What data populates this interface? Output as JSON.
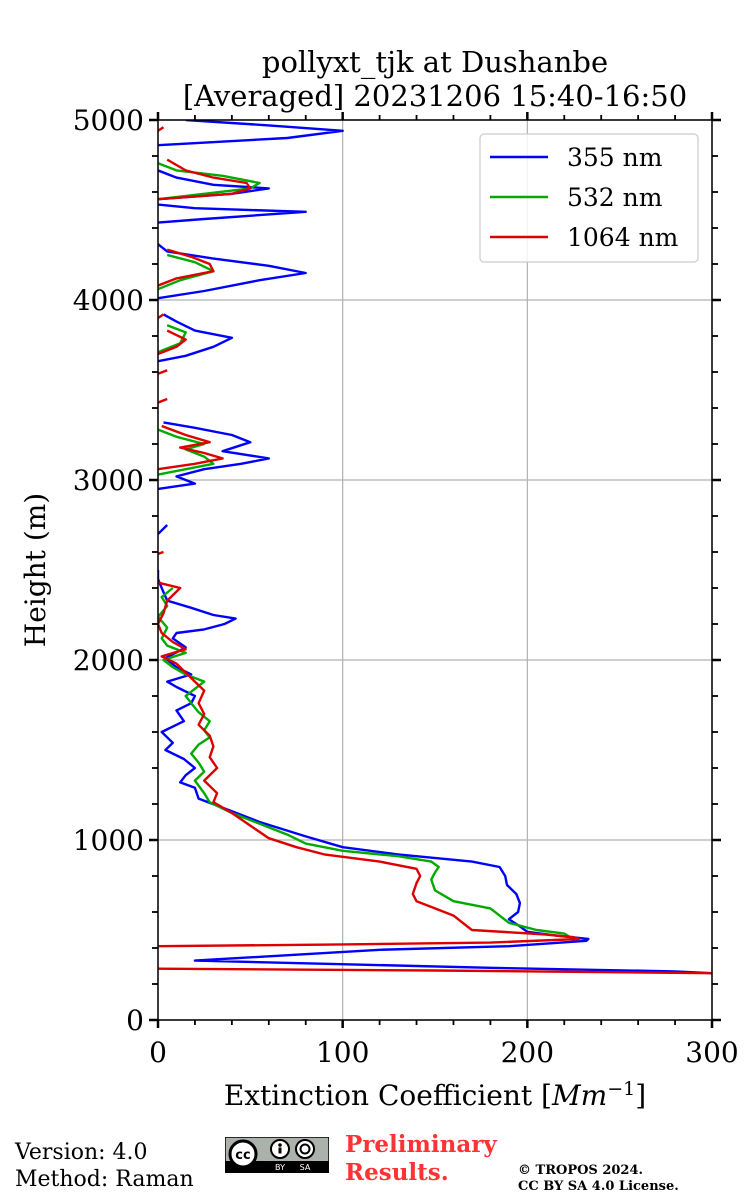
{
  "chart_data": {
    "type": "line",
    "title": "pollyxt_tjk at Dushanbe",
    "subtitle": "[Averaged] 20231206 15:40-16:50",
    "xlabel": "Extinction Coefficient [Mm⁻¹]",
    "ylabel": "Height (m)",
    "xlim": [
      0,
      300
    ],
    "ylim": [
      0,
      5000
    ],
    "xticks": [
      "0",
      "100",
      "200",
      "300"
    ],
    "yticks": [
      "0",
      "1000",
      "2000",
      "3000",
      "4000",
      "5000"
    ],
    "grid": true,
    "legend_position": "top-right",
    "series": [
      {
        "name": "355 nm",
        "color": "#0000ff",
        "points": [
          [
            300,
            260
          ],
          [
            280,
            270
          ],
          [
            180,
            290
          ],
          [
            20,
            330
          ],
          [
            120,
            390
          ],
          [
            190,
            410
          ],
          [
            232,
            440
          ],
          [
            233,
            450
          ],
          [
            215,
            470
          ],
          [
            200,
            490
          ],
          [
            196,
            520
          ],
          [
            190,
            560
          ],
          [
            195,
            600
          ],
          [
            196,
            650
          ],
          [
            194,
            700
          ],
          [
            189,
            750
          ],
          [
            188,
            800
          ],
          [
            185,
            850
          ],
          [
            170,
            880
          ],
          [
            130,
            920
          ],
          [
            100,
            960
          ],
          [
            80,
            1020
          ],
          [
            55,
            1100
          ],
          [
            40,
            1160
          ],
          [
            22,
            1230
          ],
          [
            20,
            1290
          ],
          [
            12,
            1320
          ],
          [
            15,
            1360
          ],
          [
            20,
            1400
          ],
          [
            14,
            1450
          ],
          [
            4,
            1500
          ],
          [
            8,
            1540
          ],
          [
            2,
            1600
          ],
          [
            14,
            1660
          ],
          [
            10,
            1720
          ],
          [
            18,
            1760
          ],
          [
            20,
            1800
          ],
          [
            10,
            1850
          ],
          [
            5,
            1880
          ],
          [
            18,
            1920
          ],
          [
            10,
            1960
          ],
          [
            4,
            2010
          ],
          [
            15,
            2070
          ],
          [
            8,
            2120
          ],
          [
            10,
            2150
          ],
          [
            25,
            2170
          ],
          [
            36,
            2200
          ],
          [
            42,
            2230
          ],
          [
            30,
            2250
          ],
          [
            18,
            2290
          ],
          [
            5,
            2330
          ],
          [
            2,
            2400
          ],
          [
            0,
            2450
          ],
          [
            0,
            2500
          ],
          [
            null,
            null
          ],
          [
            0,
            2700
          ],
          [
            5,
            2750
          ],
          [
            null,
            null
          ],
          [
            0,
            2950
          ],
          [
            20,
            2980
          ],
          [
            10,
            3020
          ],
          [
            25,
            3060
          ],
          [
            45,
            3090
          ],
          [
            60,
            3120
          ],
          [
            35,
            3160
          ],
          [
            50,
            3210
          ],
          [
            40,
            3250
          ],
          [
            20,
            3290
          ],
          [
            3,
            3320
          ],
          [
            null,
            null
          ],
          [
            0,
            3660
          ],
          [
            15,
            3690
          ],
          [
            30,
            3740
          ],
          [
            40,
            3790
          ],
          [
            20,
            3830
          ],
          [
            10,
            3880
          ],
          [
            3,
            3920
          ],
          [
            null,
            null
          ],
          [
            0,
            4010
          ],
          [
            25,
            4050
          ],
          [
            55,
            4110
          ],
          [
            80,
            4150
          ],
          [
            60,
            4190
          ],
          [
            30,
            4230
          ],
          [
            5,
            4270
          ],
          [
            0,
            4310
          ],
          [
            null,
            null
          ],
          [
            0,
            4430
          ],
          [
            25,
            4450
          ],
          [
            80,
            4490
          ],
          [
            20,
            4510
          ],
          [
            0,
            4530
          ],
          [
            null,
            null
          ],
          [
            0,
            4560
          ],
          [
            40,
            4590
          ],
          [
            60,
            4620
          ],
          [
            30,
            4640
          ],
          [
            10,
            4680
          ],
          [
            0,
            4720
          ],
          [
            null,
            null
          ],
          [
            0,
            4860
          ],
          [
            70,
            4900
          ],
          [
            100,
            4940
          ],
          [
            60,
            4970
          ],
          [
            15,
            5000
          ]
        ]
      },
      {
        "name": "532 nm",
        "color": "#00aa00",
        "points": [
          [
            225,
            450
          ],
          [
            220,
            480
          ],
          [
            205,
            500
          ],
          [
            190,
            540
          ],
          [
            185,
            580
          ],
          [
            180,
            620
          ],
          [
            160,
            660
          ],
          [
            150,
            720
          ],
          [
            148,
            780
          ],
          [
            150,
            820
          ],
          [
            152,
            850
          ],
          [
            148,
            880
          ],
          [
            130,
            910
          ],
          [
            100,
            940
          ],
          [
            80,
            980
          ],
          [
            70,
            1030
          ],
          [
            55,
            1090
          ],
          [
            40,
            1150
          ],
          [
            28,
            1210
          ],
          [
            25,
            1260
          ],
          [
            20,
            1330
          ],
          [
            25,
            1380
          ],
          [
            22,
            1430
          ],
          [
            18,
            1480
          ],
          [
            22,
            1530
          ],
          [
            28,
            1570
          ],
          [
            25,
            1610
          ],
          [
            28,
            1660
          ],
          [
            22,
            1710
          ],
          [
            18,
            1760
          ],
          [
            15,
            1800
          ],
          [
            20,
            1840
          ],
          [
            25,
            1880
          ],
          [
            15,
            1920
          ],
          [
            8,
            1960
          ],
          [
            3,
            2000
          ],
          [
            15,
            2040
          ],
          [
            5,
            2080
          ],
          [
            2,
            2120
          ],
          [
            5,
            2180
          ],
          [
            0,
            2240
          ],
          [
            5,
            2300
          ],
          [
            2,
            2350
          ],
          [
            8,
            2400
          ],
          [
            null,
            null
          ],
          [
            0,
            3030
          ],
          [
            15,
            3060
          ],
          [
            30,
            3090
          ],
          [
            25,
            3130
          ],
          [
            15,
            3170
          ],
          [
            25,
            3200
          ],
          [
            10,
            3240
          ],
          [
            0,
            3280
          ],
          [
            null,
            null
          ],
          [
            0,
            3710
          ],
          [
            12,
            3760
          ],
          [
            15,
            3820
          ],
          [
            5,
            3860
          ],
          [
            null,
            null
          ],
          [
            0,
            4060
          ],
          [
            12,
            4110
          ],
          [
            30,
            4160
          ],
          [
            20,
            4210
          ],
          [
            5,
            4250
          ],
          [
            null,
            null
          ],
          [
            0,
            4560
          ],
          [
            25,
            4590
          ],
          [
            50,
            4620
          ],
          [
            55,
            4650
          ],
          [
            35,
            4690
          ],
          [
            10,
            4720
          ],
          [
            0,
            4760
          ]
        ]
      },
      {
        "name": "1064 nm",
        "color": "#dd0000",
        "points": [
          [
            300,
            260
          ],
          [
            150,
            275
          ],
          [
            0,
            285
          ],
          [
            null,
            null
          ],
          [
            0,
            410
          ],
          [
            100,
            420
          ],
          [
            180,
            430
          ],
          [
            228,
            450
          ],
          [
            225,
            460
          ],
          [
            210,
            475
          ],
          [
            170,
            500
          ],
          [
            165,
            540
          ],
          [
            160,
            580
          ],
          [
            150,
            620
          ],
          [
            140,
            660
          ],
          [
            138,
            700
          ],
          [
            140,
            760
          ],
          [
            142,
            800
          ],
          [
            140,
            840
          ],
          [
            120,
            880
          ],
          [
            90,
            920
          ],
          [
            75,
            960
          ],
          [
            60,
            1010
          ],
          [
            50,
            1080
          ],
          [
            40,
            1150
          ],
          [
            30,
            1210
          ],
          [
            32,
            1260
          ],
          [
            25,
            1330
          ],
          [
            32,
            1400
          ],
          [
            28,
            1460
          ],
          [
            30,
            1520
          ],
          [
            28,
            1580
          ],
          [
            22,
            1640
          ],
          [
            25,
            1700
          ],
          [
            22,
            1760
          ],
          [
            25,
            1830
          ],
          [
            20,
            1880
          ],
          [
            15,
            1930
          ],
          [
            10,
            1980
          ],
          [
            2,
            2020
          ],
          [
            15,
            2060
          ],
          [
            8,
            2100
          ],
          [
            2,
            2150
          ],
          [
            0,
            2200
          ],
          [
            3,
            2260
          ],
          [
            5,
            2330
          ],
          [
            12,
            2400
          ],
          [
            0,
            2430
          ],
          [
            null,
            null
          ],
          [
            0,
            2590
          ],
          [
            3,
            2600
          ],
          [
            null,
            null
          ],
          [
            0,
            3060
          ],
          [
            20,
            3090
          ],
          [
            35,
            3120
          ],
          [
            25,
            3150
          ],
          [
            12,
            3180
          ],
          [
            28,
            3210
          ],
          [
            15,
            3250
          ],
          [
            2,
            3300
          ],
          [
            null,
            null
          ],
          [
            0,
            3430
          ],
          [
            5,
            3450
          ],
          [
            null,
            null
          ],
          [
            0,
            3590
          ],
          [
            5,
            3610
          ],
          [
            null,
            null
          ],
          [
            0,
            3700
          ],
          [
            10,
            3740
          ],
          [
            15,
            3780
          ],
          [
            5,
            3830
          ],
          [
            null,
            null
          ],
          [
            0,
            3900
          ],
          [
            3,
            3920
          ],
          [
            null,
            null
          ],
          [
            0,
            4080
          ],
          [
            10,
            4120
          ],
          [
            30,
            4160
          ],
          [
            28,
            4200
          ],
          [
            18,
            4240
          ],
          [
            5,
            4280
          ],
          [
            null,
            null
          ],
          [
            0,
            4560
          ],
          [
            40,
            4590
          ],
          [
            50,
            4620
          ],
          [
            48,
            4650
          ],
          [
            30,
            4680
          ],
          [
            15,
            4720
          ],
          [
            5,
            4780
          ],
          [
            null,
            null
          ],
          [
            0,
            4940
          ],
          [
            3,
            4960
          ]
        ]
      }
    ]
  },
  "footer": {
    "version": "Version: 4.0",
    "method": "Method: Raman",
    "preliminary_line1": "Preliminary",
    "preliminary_line2": "Results.",
    "copyright_line1": "© TROPOS 2024.",
    "copyright_line2": "CC BY SA 4.0 License.",
    "cc_badge_text": "cc",
    "cc_by": "BY",
    "cc_sa": "SA"
  }
}
